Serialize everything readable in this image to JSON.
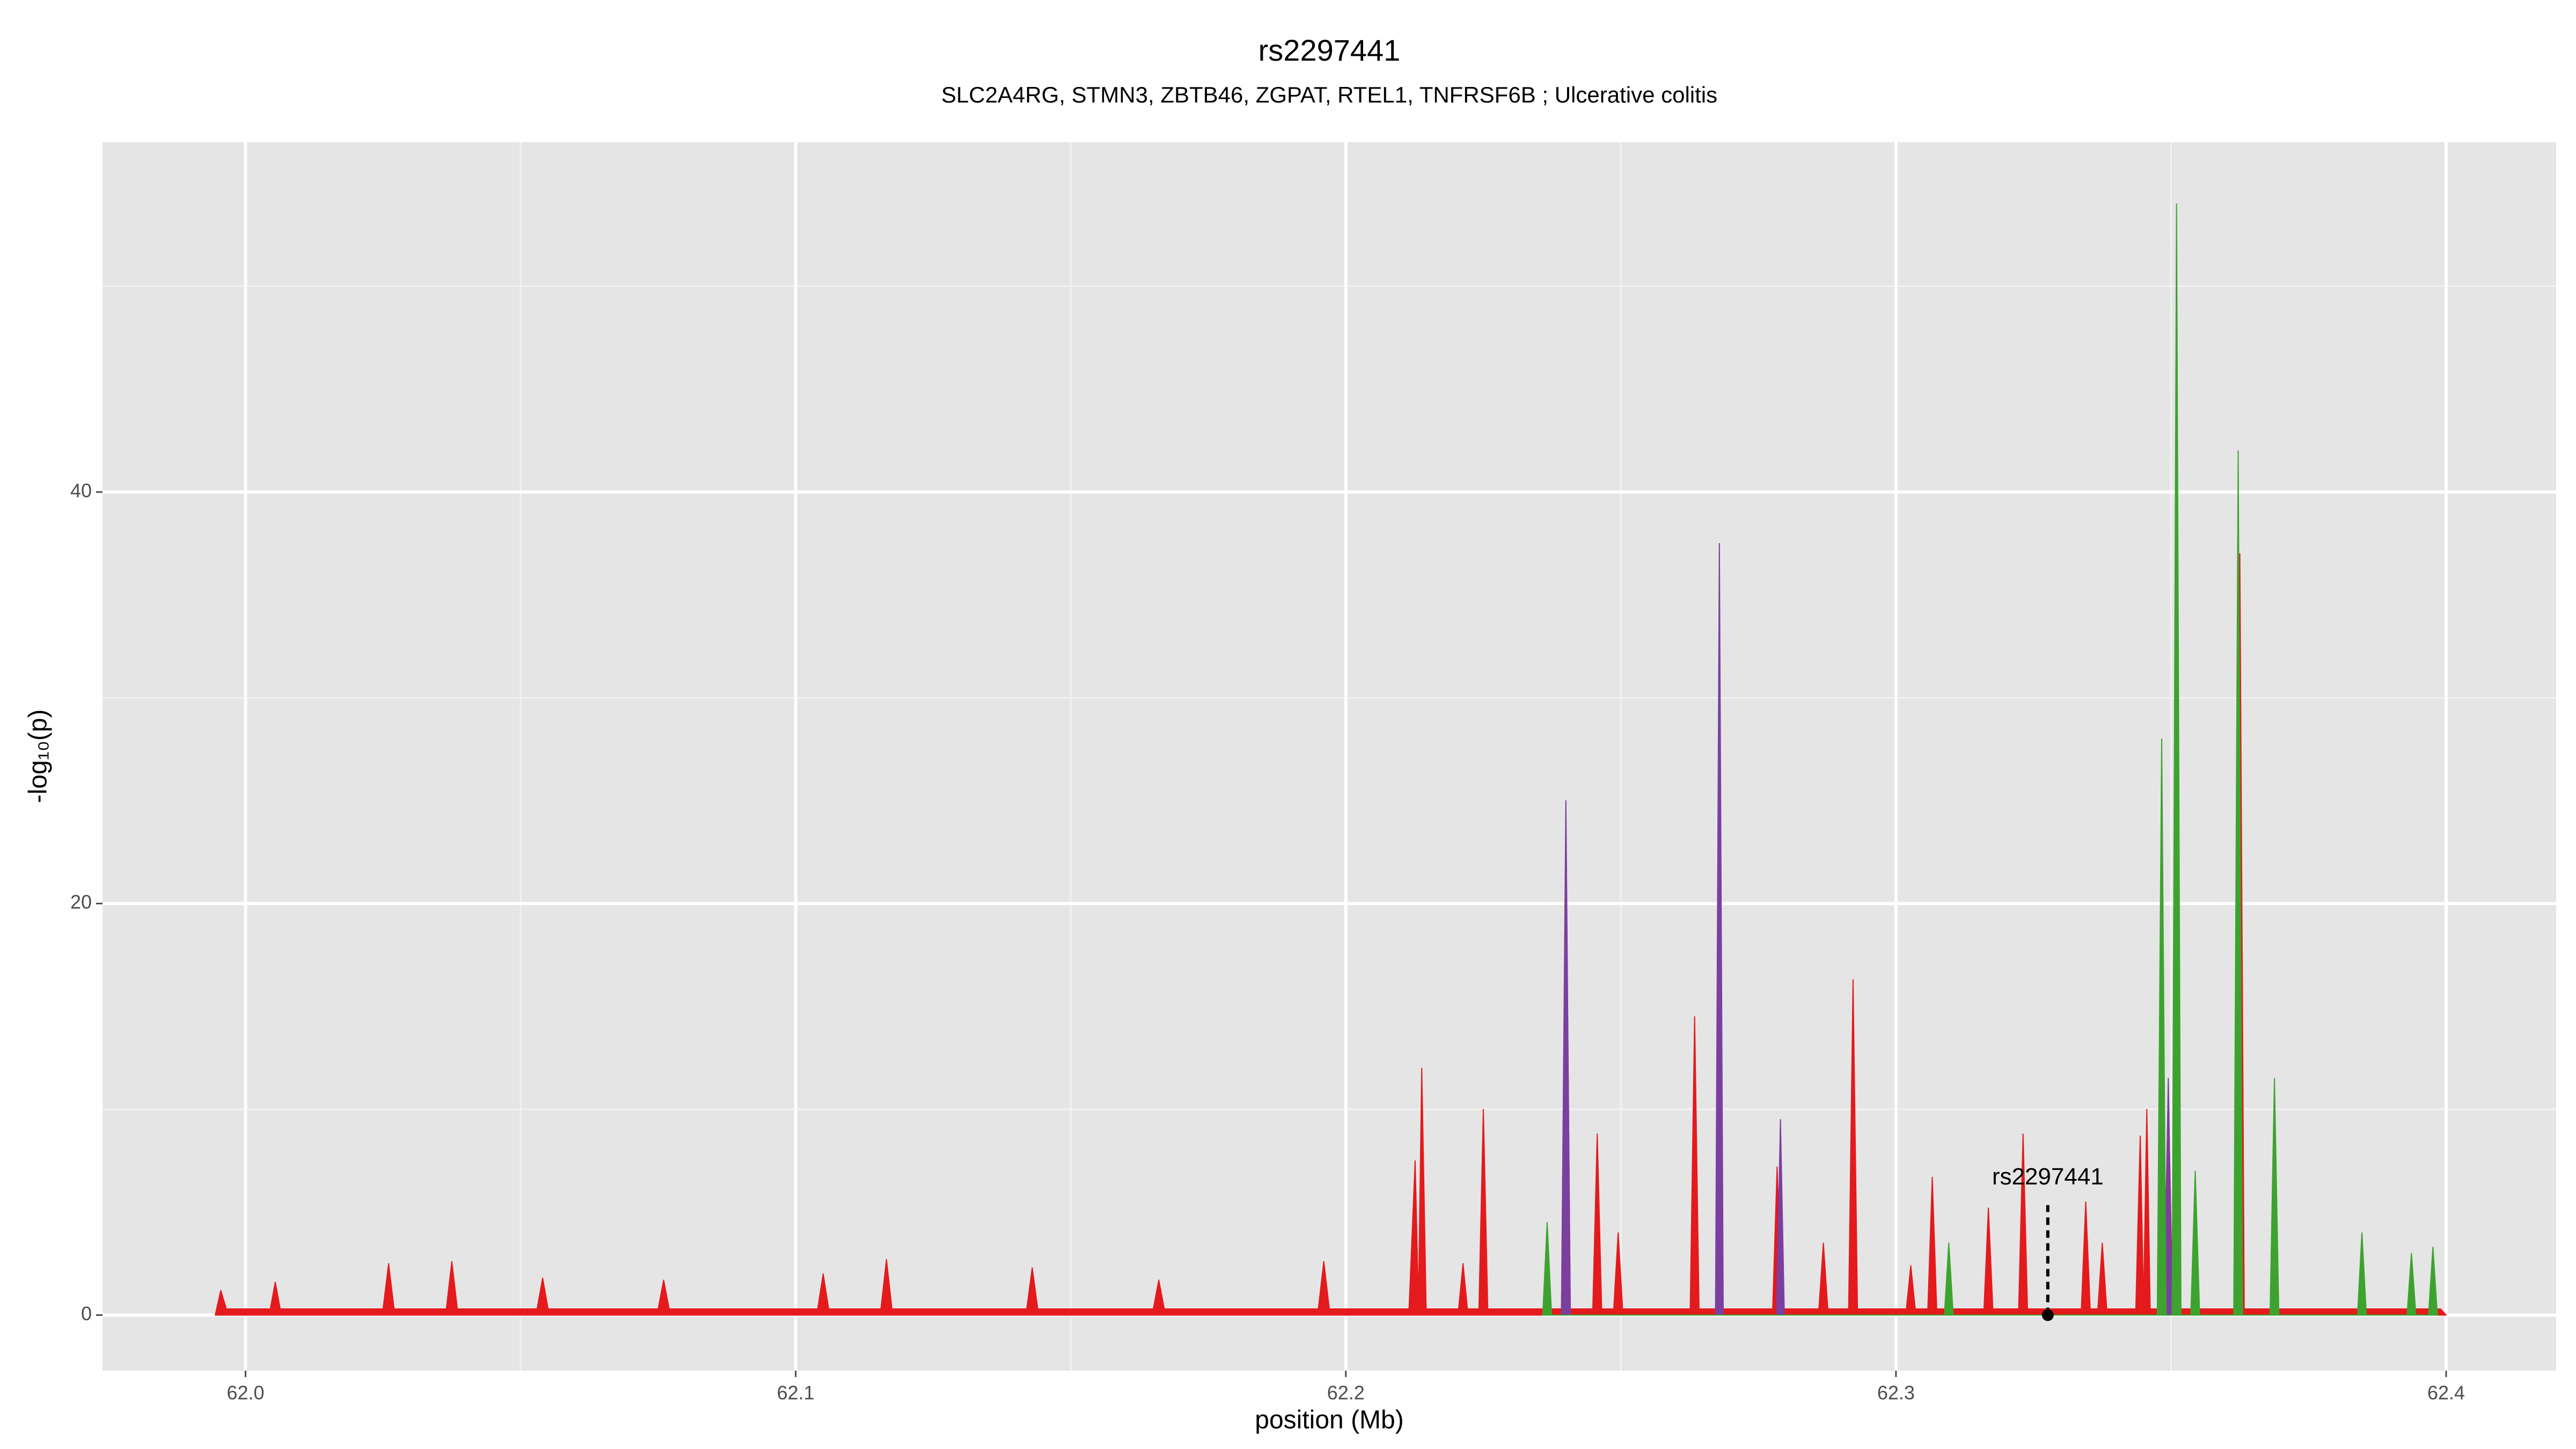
{
  "chart_data": {
    "type": "area",
    "title": "rs2297441",
    "subtitle": "SLC2A4RG, STMN3, ZBTB46, ZGPAT, RTEL1, TNFRSF6B ; Ulcerative colitis",
    "x_label": "position (Mb)",
    "y_label": "-log₁₀(p)",
    "xlim": [
      61.974,
      62.42
    ],
    "ylim": [
      -2.7,
      57
    ],
    "xticks": [
      {
        "value": 62,
        "label": "62.0"
      },
      62.1,
      62.2,
      62.3,
      62.4
    ],
    "yticks": [
      0,
      20,
      40
    ],
    "minor_xticks": [
      62.05,
      62.15,
      62.25,
      62.35
    ],
    "minor_yticks": [
      10,
      30,
      50
    ],
    "grid": true,
    "background": "#e5e5e5",
    "series": [
      {
        "color": "#e41a1c",
        "x": [
          61.9945,
          61.9955,
          61.9965,
          62.0045,
          62.0054,
          62.0063,
          62.025,
          62.026,
          62.027,
          62.0365,
          62.0375,
          62.0385,
          62.053,
          62.054,
          62.055,
          62.075,
          62.076,
          62.077,
          62.104,
          62.105,
          62.106,
          62.1155,
          62.1165,
          62.1175,
          62.142,
          62.143,
          62.144,
          62.165,
          62.166,
          62.167,
          62.195,
          62.196,
          62.197,
          62.2115,
          62.2126,
          62.2132,
          62.2138,
          62.2146,
          62.2205,
          62.2213,
          62.2221,
          62.2242,
          62.225,
          62.2258,
          62.2392,
          62.24,
          62.2408,
          62.2449,
          62.2457,
          62.2465,
          62.2487,
          62.2495,
          62.2503,
          62.2626,
          62.2634,
          62.2642,
          62.2672,
          62.2679,
          62.2686,
          62.2776,
          62.2784,
          62.2792,
          62.286,
          62.2868,
          62.2876,
          62.2914,
          62.2922,
          62.293,
          62.3019,
          62.3027,
          62.3035,
          62.3058,
          62.3066,
          62.3074,
          62.316,
          62.3168,
          62.3176,
          62.3223,
          62.3231,
          62.3239,
          62.3337,
          62.3345,
          62.3353,
          62.3367,
          62.3375,
          62.3383,
          62.3436,
          62.3444,
          62.345,
          62.3456,
          62.3462,
          62.3487,
          62.3495,
          62.3503,
          62.3617,
          62.3625,
          62.3633,
          62.399,
          62.4
        ],
        "values": [
          0,
          1.2,
          0.3,
          0.3,
          1.6,
          0.3,
          0.3,
          2.5,
          0.3,
          0.3,
          2.6,
          0.3,
          0.3,
          1.8,
          0.3,
          0.3,
          1.7,
          0.3,
          0.3,
          2.0,
          0.3,
          0.3,
          2.7,
          0.3,
          0.3,
          2.3,
          0.3,
          0.3,
          1.7,
          0.3,
          0.3,
          2.6,
          0.3,
          0.3,
          7.5,
          0.5,
          12,
          0.3,
          0.3,
          2.5,
          0.3,
          0.3,
          10,
          0.3,
          0.3,
          24,
          0.3,
          0.3,
          8.8,
          0.3,
          0.3,
          4,
          0.3,
          0.3,
          14.5,
          0.3,
          0.3,
          3,
          0.3,
          0.3,
          7.2,
          0.3,
          0.3,
          3.5,
          0.3,
          0.3,
          16.3,
          0.3,
          0.3,
          2.4,
          0.3,
          0.3,
          6.7,
          0.3,
          0.3,
          5.2,
          0.3,
          0.3,
          8.8,
          0.3,
          0.3,
          5.5,
          0.3,
          0.3,
          3.5,
          0.3,
          0.3,
          8.7,
          0.5,
          10,
          0.3,
          0.3,
          11,
          0.3,
          0.3,
          37,
          0.3,
          0.3,
          0
        ]
      },
      {
        "color": "#7b3fa0",
        "x": [
          62.2392,
          62.24,
          62.2408,
          62.2672,
          62.2679,
          62.2686,
          62.2783,
          62.279,
          62.2797,
          62.3488,
          62.3495,
          62.3502
        ],
        "values": [
          0,
          25,
          0,
          0,
          37.5,
          0,
          0,
          9.5,
          0,
          0,
          11.5,
          0
        ]
      },
      {
        "color": "#3da32f",
        "x": [
          62.2358,
          62.2366,
          62.2374,
          62.3088,
          62.3096,
          62.3104,
          62.3475,
          62.3483,
          62.3491,
          62.3502,
          62.351,
          62.3518,
          62.3536,
          62.3544,
          62.3552,
          62.3614,
          62.3622,
          62.363,
          62.368,
          62.3688,
          62.3696,
          62.3839,
          62.3847,
          62.3855,
          62.3929,
          62.3937,
          62.3945,
          62.3968,
          62.3976,
          62.3984
        ],
        "values": [
          0,
          4.5,
          0,
          0,
          3.5,
          0,
          0,
          28,
          0,
          0,
          54,
          0,
          0,
          7,
          0,
          0,
          42,
          0,
          0,
          11.5,
          0,
          0,
          4,
          0,
          0,
          3,
          0,
          0,
          3.3,
          0
        ]
      }
    ],
    "annotation": {
      "text": "rs2297441",
      "x": 62.3276,
      "y": 0
    }
  }
}
